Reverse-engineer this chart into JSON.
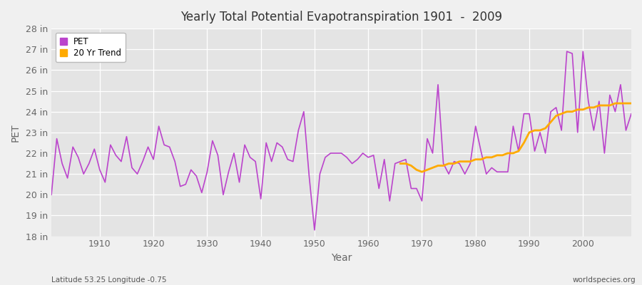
{
  "title": "Yearly Total Potential Evapotranspiration 1901  -  2009",
  "xlabel": "Year",
  "ylabel": "PET",
  "footnote_left": "Latitude 53.25 Longitude -0.75",
  "footnote_right": "worldspecies.org",
  "ylim": [
    18,
    28
  ],
  "yticks": [
    18,
    19,
    20,
    21,
    22,
    23,
    24,
    25,
    26,
    27,
    28
  ],
  "ytick_labels": [
    "18 in",
    "19 in",
    "20 in",
    "21 in",
    "22 in",
    "23 in",
    "24 in",
    "25 in",
    "26 in",
    "27 in",
    "28 in"
  ],
  "xlim": [
    1901,
    2009
  ],
  "xticks": [
    1910,
    1920,
    1930,
    1940,
    1950,
    1960,
    1970,
    1980,
    1990,
    2000
  ],
  "pet_color": "#bb44cc",
  "trend_color": "#ffaa00",
  "bg_color": "#f0f0f0",
  "plot_bg_color": "#e4e4e4",
  "grid_color": "#ffffff",
  "legend_entries": [
    "PET",
    "20 Yr Trend"
  ],
  "years": [
    1901,
    1902,
    1903,
    1904,
    1905,
    1906,
    1907,
    1908,
    1909,
    1910,
    1911,
    1912,
    1913,
    1914,
    1915,
    1916,
    1917,
    1918,
    1919,
    1920,
    1921,
    1922,
    1923,
    1924,
    1925,
    1926,
    1927,
    1928,
    1929,
    1930,
    1931,
    1932,
    1933,
    1934,
    1935,
    1936,
    1937,
    1938,
    1939,
    1940,
    1941,
    1942,
    1943,
    1944,
    1945,
    1946,
    1947,
    1948,
    1949,
    1950,
    1951,
    1952,
    1953,
    1954,
    1955,
    1956,
    1957,
    1958,
    1959,
    1960,
    1961,
    1962,
    1963,
    1964,
    1965,
    1966,
    1967,
    1968,
    1969,
    1970,
    1971,
    1972,
    1973,
    1974,
    1975,
    1976,
    1977,
    1978,
    1979,
    1980,
    1981,
    1982,
    1983,
    1984,
    1985,
    1986,
    1987,
    1988,
    1989,
    1990,
    1991,
    1992,
    1993,
    1994,
    1995,
    1996,
    1997,
    1998,
    1999,
    2000,
    2001,
    2002,
    2003,
    2004,
    2005,
    2006,
    2007,
    2008,
    2009
  ],
  "pet_values": [
    20.0,
    22.7,
    21.5,
    20.8,
    22.3,
    21.8,
    21.0,
    21.5,
    22.2,
    21.2,
    20.6,
    22.4,
    21.9,
    21.6,
    22.8,
    21.3,
    21.0,
    21.6,
    22.3,
    21.7,
    23.3,
    22.4,
    22.3,
    21.6,
    20.4,
    20.5,
    21.2,
    20.9,
    20.1,
    21.1,
    22.6,
    21.9,
    20.0,
    21.1,
    22.0,
    20.6,
    22.4,
    21.8,
    21.6,
    19.8,
    22.5,
    21.6,
    22.5,
    22.3,
    21.7,
    21.6,
    23.1,
    24.0,
    20.9,
    18.3,
    21.0,
    21.8,
    22.0,
    22.0,
    22.0,
    21.8,
    21.5,
    21.7,
    22.0,
    21.8,
    21.9,
    20.3,
    21.7,
    19.7,
    21.5,
    21.6,
    21.7,
    20.3,
    20.3,
    19.7,
    22.7,
    22.0,
    25.3,
    21.5,
    21.0,
    21.6,
    21.5,
    21.0,
    21.5,
    23.3,
    22.1,
    21.0,
    21.3,
    21.1,
    21.1,
    21.1,
    23.3,
    22.1,
    23.9,
    23.9,
    22.1,
    23.0,
    22.0,
    24.0,
    24.2,
    23.1,
    26.9,
    26.8,
    23.0,
    26.9,
    24.5,
    23.1,
    24.5,
    22.0,
    24.8,
    24.0,
    25.3,
    23.1,
    23.9
  ],
  "trend_values_years": [
    1966,
    1967,
    1968,
    1969,
    1970,
    1971,
    1972,
    1973,
    1974,
    1975,
    1976,
    1977,
    1978,
    1979,
    1980,
    1981,
    1982,
    1983,
    1984,
    1985,
    1986,
    1987,
    1988,
    1989,
    1990,
    1991,
    1992,
    1993,
    1994,
    1995,
    1996,
    1997,
    1998,
    1999,
    2000,
    2001,
    2002,
    2003,
    2004,
    2005,
    2006,
    2007,
    2008,
    2009
  ],
  "trend_values": [
    21.5,
    21.5,
    21.4,
    21.2,
    21.1,
    21.2,
    21.3,
    21.4,
    21.4,
    21.5,
    21.5,
    21.6,
    21.6,
    21.6,
    21.7,
    21.7,
    21.8,
    21.8,
    21.9,
    21.9,
    22.0,
    22.0,
    22.1,
    22.5,
    23.0,
    23.1,
    23.1,
    23.2,
    23.5,
    23.8,
    23.9,
    24.0,
    24.0,
    24.1,
    24.1,
    24.2,
    24.2,
    24.3,
    24.3,
    24.3,
    24.4,
    24.4,
    24.4,
    24.4
  ]
}
